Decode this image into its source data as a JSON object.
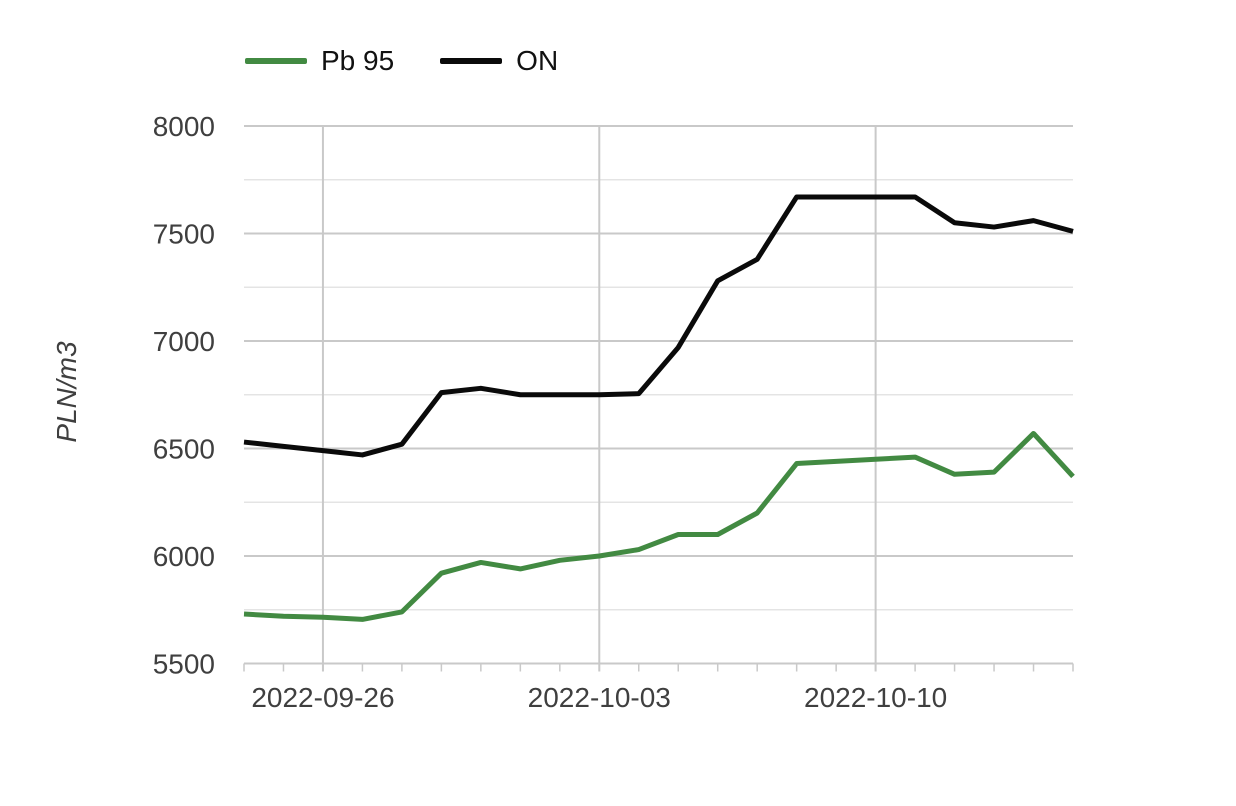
{
  "legend": {
    "items": [
      {
        "label": "Pb 95",
        "color": "#428a42"
      },
      {
        "label": "ON",
        "color": "#0a0a0a"
      }
    ]
  },
  "chart_data": {
    "type": "line",
    "title": "",
    "xlabel": "",
    "ylabel": "PLN/m3",
    "ylim": [
      5500,
      8000
    ],
    "yticks_major": [
      5500,
      6000,
      6500,
      7000,
      7500,
      8000
    ],
    "yticks_minor": [
      5750,
      6250,
      6750,
      7250,
      7750
    ],
    "x": [
      "2022-09-24",
      "2022-09-25",
      "2022-09-26",
      "2022-09-27",
      "2022-09-28",
      "2022-09-29",
      "2022-09-30",
      "2022-10-01",
      "2022-10-02",
      "2022-10-03",
      "2022-10-04",
      "2022-10-05",
      "2022-10-06",
      "2022-10-07",
      "2022-10-08",
      "2022-10-09",
      "2022-10-10",
      "2022-10-11",
      "2022-10-12",
      "2022-10-13",
      "2022-10-14",
      "2022-10-15"
    ],
    "x_labeled_ticks": [
      "2022-09-26",
      "2022-10-03",
      "2022-10-10"
    ],
    "series": [
      {
        "name": "Pb 95",
        "color": "#428a42",
        "values": [
          5730,
          5720,
          5715,
          5705,
          5740,
          5920,
          5970,
          5940,
          5980,
          6000,
          6030,
          6100,
          6100,
          6200,
          6430,
          6440,
          6450,
          6460,
          6380,
          6390,
          6570,
          6370
        ]
      },
      {
        "name": "ON",
        "color": "#0a0a0a",
        "values": [
          6530,
          6510,
          6490,
          6470,
          6520,
          6760,
          6780,
          6750,
          6750,
          6750,
          6755,
          6970,
          7280,
          7380,
          7670,
          7670,
          7670,
          7670,
          7550,
          7530,
          7560,
          7510
        ]
      }
    ],
    "grid": true,
    "grid_color_major": "#c9c9c9",
    "grid_color_minor": "#e4e4e4",
    "tick_label_color": "#3f3f3f",
    "legend_position": "top-left"
  }
}
